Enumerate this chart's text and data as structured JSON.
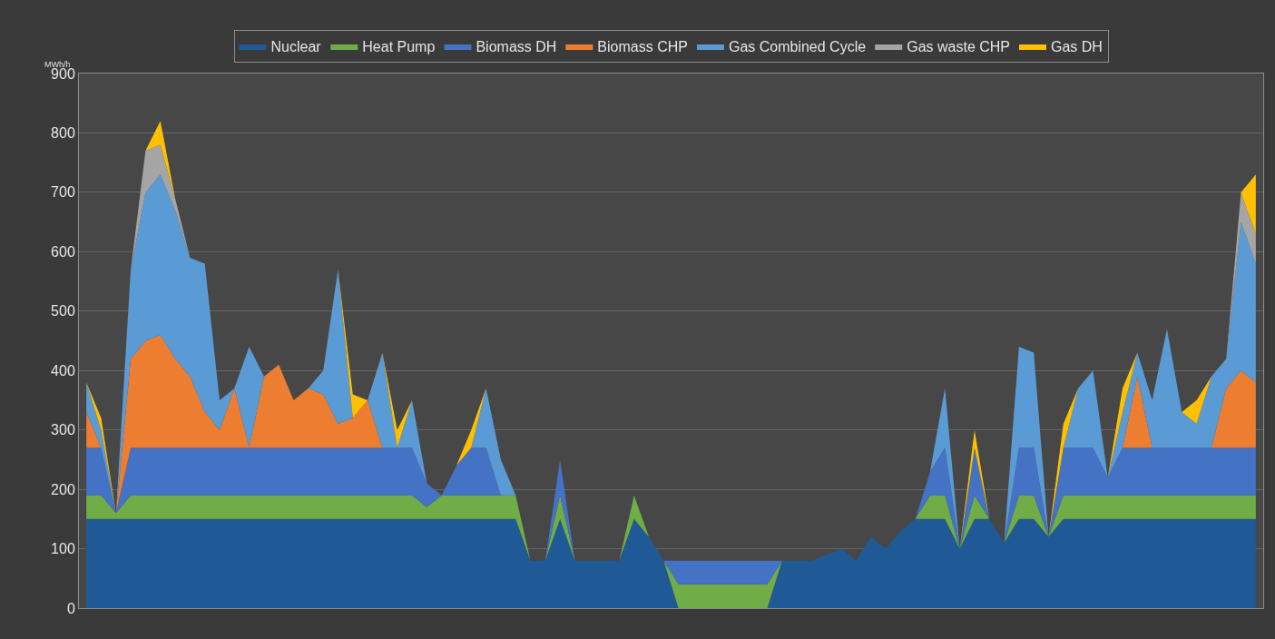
{
  "chart_data": {
    "type": "area",
    "stacked": true,
    "ylabel": "MWh/h",
    "legend": "top",
    "grid": "y",
    "ylim": [
      0,
      900
    ],
    "yticks": [
      0,
      100,
      200,
      300,
      400,
      500,
      600,
      700,
      800,
      900
    ],
    "categories": [
      null,
      null,
      null,
      null,
      null,
      null,
      null,
      null,
      null,
      null,
      null,
      null,
      null,
      null,
      null,
      null,
      null,
      null,
      null,
      null,
      null,
      null,
      null,
      null,
      null,
      null,
      null,
      null,
      null,
      null,
      null,
      null,
      null,
      null,
      null,
      null,
      null,
      null,
      null,
      null,
      null,
      null,
      null,
      null,
      null,
      null,
      null,
      null,
      null,
      null,
      null,
      null,
      null,
      null,
      null,
      null,
      null,
      null,
      null,
      null,
      null,
      null,
      null,
      null,
      null,
      null,
      null,
      null,
      null,
      null,
      null,
      null,
      null,
      null,
      null,
      null,
      null,
      null,
      null,
      null
    ],
    "series": [
      {
        "name": "Nuclear",
        "color": "#1f5a96",
        "values": [
          150,
          150,
          150,
          150,
          150,
          150,
          150,
          150,
          150,
          150,
          150,
          150,
          150,
          150,
          150,
          150,
          150,
          150,
          150,
          150,
          150,
          150,
          150,
          150,
          150,
          150,
          150,
          150,
          150,
          150,
          80,
          80,
          150,
          80,
          80,
          80,
          80,
          150,
          120,
          80,
          0,
          0,
          0,
          0,
          0,
          0,
          0,
          80,
          80,
          80,
          90,
          100,
          80,
          120,
          100,
          130,
          150,
          150,
          150,
          100,
          150,
          150,
          110,
          150,
          150,
          120,
          150,
          150,
          150,
          150,
          150,
          150,
          150,
          150,
          150,
          150,
          150,
          150,
          150,
          150
        ]
      },
      {
        "name": "Heat Pump",
        "color": "#70ad47",
        "values": [
          40,
          40,
          10,
          40,
          40,
          40,
          40,
          40,
          40,
          40,
          40,
          40,
          40,
          40,
          40,
          40,
          40,
          40,
          40,
          40,
          40,
          40,
          40,
          20,
          40,
          40,
          40,
          40,
          40,
          40,
          0,
          0,
          40,
          0,
          0,
          0,
          0,
          40,
          0,
          0,
          40,
          40,
          40,
          40,
          40,
          40,
          40,
          0,
          0,
          0,
          0,
          0,
          0,
          0,
          0,
          0,
          0,
          40,
          40,
          0,
          40,
          0,
          0,
          40,
          40,
          0,
          40,
          40,
          40,
          40,
          40,
          40,
          40,
          40,
          40,
          40,
          40,
          40,
          40,
          40
        ]
      },
      {
        "name": "Biomass DH",
        "color": "#4472c4",
        "values": [
          80,
          80,
          0,
          80,
          80,
          80,
          80,
          80,
          80,
          80,
          80,
          80,
          80,
          80,
          80,
          80,
          80,
          80,
          80,
          80,
          80,
          80,
          80,
          40,
          0,
          50,
          80,
          80,
          0,
          0,
          0,
          0,
          60,
          0,
          0,
          0,
          0,
          0,
          0,
          0,
          40,
          40,
          40,
          40,
          40,
          40,
          40,
          0,
          0,
          0,
          0,
          0,
          0,
          0,
          0,
          0,
          0,
          40,
          80,
          0,
          80,
          0,
          0,
          80,
          80,
          0,
          80,
          80,
          80,
          30,
          80,
          80,
          80,
          80,
          80,
          80,
          80,
          80,
          80,
          80
        ]
      },
      {
        "name": "Biomass CHP",
        "color": "#ed7d31",
        "values": [
          60,
          0,
          0,
          150,
          180,
          190,
          150,
          120,
          60,
          30,
          100,
          0,
          120,
          140,
          80,
          100,
          90,
          40,
          50,
          80,
          0,
          0,
          0,
          0,
          0,
          0,
          0,
          0,
          0,
          0,
          0,
          0,
          0,
          0,
          0,
          0,
          0,
          0,
          0,
          0,
          0,
          0,
          0,
          0,
          0,
          0,
          0,
          0,
          0,
          0,
          0,
          0,
          0,
          0,
          0,
          0,
          0,
          0,
          0,
          0,
          0,
          0,
          0,
          0,
          0,
          0,
          0,
          0,
          0,
          0,
          0,
          120,
          0,
          0,
          0,
          0,
          0,
          100,
          130,
          110
        ]
      },
      {
        "name": "Gas Combined Cycle",
        "color": "#5b9bd5",
        "values": [
          50,
          30,
          0,
          150,
          250,
          270,
          250,
          200,
          250,
          50,
          0,
          170,
          0,
          0,
          0,
          0,
          40,
          260,
          0,
          0,
          160,
          0,
          80,
          0,
          0,
          0,
          0,
          100,
          60,
          0,
          0,
          0,
          0,
          0,
          0,
          0,
          0,
          0,
          0,
          0,
          0,
          0,
          0,
          0,
          0,
          0,
          0,
          0,
          0,
          0,
          0,
          0,
          0,
          0,
          0,
          0,
          0,
          0,
          100,
          0,
          0,
          0,
          0,
          170,
          160,
          0,
          0,
          100,
          130,
          0,
          60,
          40,
          80,
          200,
          60,
          40,
          120,
          50,
          250,
          200
        ]
      },
      {
        "name": "Gas waste CHP",
        "color": "#a5a5a5",
        "values": [
          0,
          0,
          0,
          0,
          70,
          50,
          20,
          0,
          0,
          0,
          0,
          0,
          0,
          0,
          0,
          0,
          0,
          0,
          0,
          0,
          0,
          0,
          0,
          0,
          0,
          0,
          0,
          0,
          0,
          0,
          0,
          0,
          0,
          0,
          0,
          0,
          0,
          0,
          0,
          0,
          0,
          0,
          0,
          0,
          0,
          0,
          0,
          0,
          0,
          0,
          0,
          0,
          0,
          0,
          0,
          0,
          0,
          0,
          0,
          0,
          0,
          0,
          0,
          0,
          0,
          0,
          0,
          0,
          0,
          0,
          0,
          0,
          0,
          0,
          0,
          0,
          0,
          0,
          50,
          50
        ]
      },
      {
        "name": "Gas DH",
        "color": "#ffc000",
        "values": [
          0,
          20,
          0,
          0,
          0,
          40,
          0,
          0,
          0,
          0,
          0,
          0,
          0,
          0,
          0,
          0,
          0,
          0,
          40,
          0,
          0,
          30,
          0,
          0,
          0,
          0,
          30,
          0,
          0,
          0,
          0,
          0,
          0,
          0,
          0,
          0,
          0,
          0,
          0,
          0,
          0,
          0,
          0,
          0,
          0,
          0,
          0,
          0,
          0,
          0,
          0,
          0,
          0,
          0,
          0,
          0,
          0,
          0,
          0,
          0,
          30,
          0,
          0,
          0,
          0,
          0,
          40,
          0,
          0,
          0,
          40,
          0,
          0,
          0,
          0,
          40,
          0,
          0,
          0,
          100
        ]
      }
    ]
  }
}
